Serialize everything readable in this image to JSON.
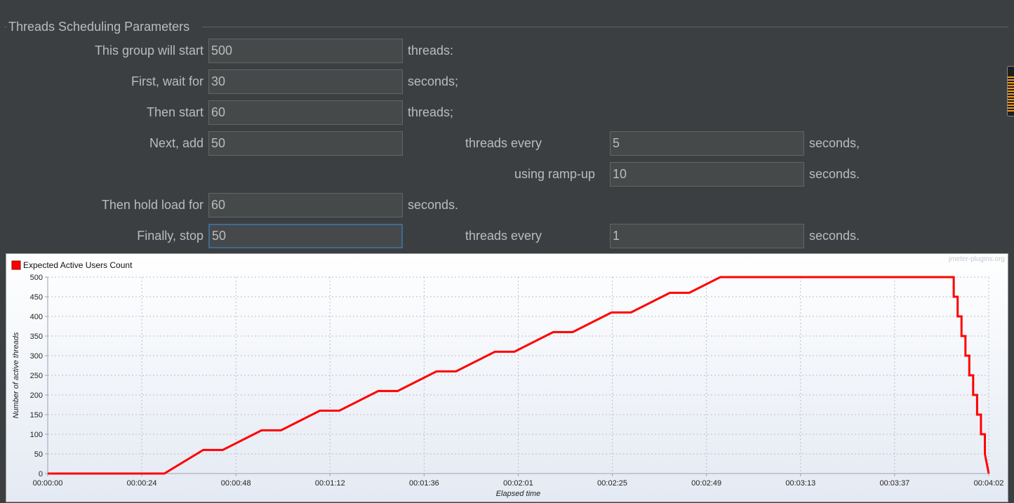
{
  "panel": {
    "title": "Threads Scheduling Parameters"
  },
  "form": {
    "start_label": "This group will start",
    "start_value": "500",
    "start_suffix": "threads:",
    "wait_label": "First, wait for",
    "wait_value": "30",
    "wait_suffix": "seconds;",
    "then_label": "Then start",
    "then_value": "60",
    "then_suffix": "threads;",
    "add_label": "Next, add",
    "add_value": "50",
    "add_mid": "threads every",
    "add_every_value": "5",
    "add_suffix": "seconds,",
    "ramp_label": "using ramp-up",
    "ramp_value": "10",
    "ramp_suffix": "seconds.",
    "hold_label": "Then hold load for",
    "hold_value": "60",
    "hold_suffix": "seconds.",
    "stop_label": "Finally, stop",
    "stop_value": "50",
    "stop_mid": "threads every",
    "stop_every_value": "1",
    "stop_suffix": "seconds."
  },
  "chart_data": {
    "type": "line",
    "series": [
      {
        "name": "Expected Active Users Count",
        "color": "#ff0000",
        "points": [
          [
            "00:00:00",
            0
          ],
          [
            "00:00:30",
            0
          ],
          [
            "00:00:40",
            60
          ],
          [
            "00:00:45",
            60
          ],
          [
            "00:00:55",
            110
          ],
          [
            "00:01:00",
            110
          ],
          [
            "00:01:10",
            160
          ],
          [
            "00:01:15",
            160
          ],
          [
            "00:01:25",
            210
          ],
          [
            "00:01:30",
            210
          ],
          [
            "00:01:40",
            260
          ],
          [
            "00:01:45",
            260
          ],
          [
            "00:01:55",
            310
          ],
          [
            "00:02:00",
            310
          ],
          [
            "00:02:10",
            360
          ],
          [
            "00:02:15",
            360
          ],
          [
            "00:02:25",
            410
          ],
          [
            "00:02:30",
            410
          ],
          [
            "00:02:40",
            460
          ],
          [
            "00:02:45",
            460
          ],
          [
            "00:02:53",
            500
          ],
          [
            "00:03:53",
            500
          ],
          [
            "00:03:53",
            450
          ],
          [
            "00:03:54",
            450
          ],
          [
            "00:03:54",
            400
          ],
          [
            "00:03:55",
            400
          ],
          [
            "00:03:55",
            350
          ],
          [
            "00:03:56",
            350
          ],
          [
            "00:03:56",
            300
          ],
          [
            "00:03:57",
            300
          ],
          [
            "00:03:57",
            250
          ],
          [
            "00:03:58",
            250
          ],
          [
            "00:03:58",
            200
          ],
          [
            "00:03:59",
            200
          ],
          [
            "00:03:59",
            150
          ],
          [
            "00:04:00",
            150
          ],
          [
            "00:04:00",
            100
          ],
          [
            "00:04:01",
            100
          ],
          [
            "00:04:01",
            50
          ],
          [
            "00:04:02",
            0
          ]
        ]
      }
    ],
    "xlabel": "Elapsed time",
    "ylabel": "Number of active threads",
    "xlim": [
      "00:00:00",
      "00:04:02"
    ],
    "ylim": [
      0,
      500
    ],
    "xticks": [
      "00:00:00",
      "00:00:24",
      "00:00:48",
      "00:01:12",
      "00:01:36",
      "00:02:01",
      "00:02:25",
      "00:02:49",
      "00:03:13",
      "00:03:37",
      "00:04:02"
    ],
    "yticks": [
      0,
      50,
      100,
      150,
      200,
      250,
      300,
      350,
      400,
      450,
      500
    ],
    "grid": true,
    "legend": "top-left",
    "watermark": "jmeter-plugins.org"
  }
}
